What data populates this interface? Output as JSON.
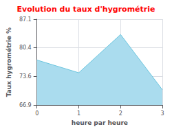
{
  "chart_data": {
    "type": "area",
    "title": "Evolution du taux d'hygrométrie",
    "xlabel": "heure par heure",
    "ylabel": "Taux hygrométrie %",
    "x": [
      0,
      1,
      2,
      3
    ],
    "values": [
      77.5,
      74.5,
      83.5,
      70.5
    ],
    "xlim": [
      0,
      3
    ],
    "xticks": [
      0,
      1,
      2,
      3
    ],
    "ylim": [
      66.9,
      87.1
    ],
    "yticks": [
      66.9,
      73.6,
      80.4,
      87.1
    ],
    "color": "#6cc5de",
    "fill_color": "#aadcee",
    "title_color": "#ff0000",
    "grid": true
  }
}
